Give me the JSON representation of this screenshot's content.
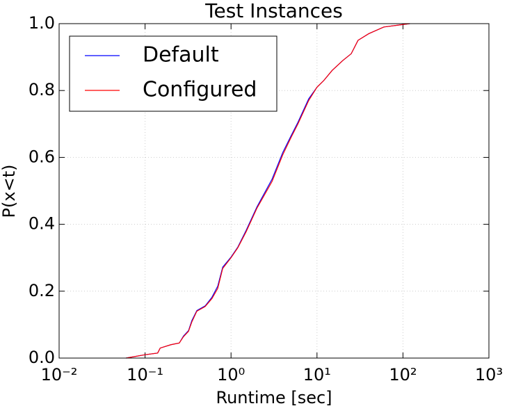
{
  "chart_data": {
    "type": "line",
    "title": "Test Instances",
    "xlabel": "Runtime [sec]",
    "ylabel": "P(x<t)",
    "x": [
      0.06,
      0.1,
      0.14,
      0.15,
      0.2,
      0.25,
      0.28,
      0.32,
      0.35,
      0.4,
      0.5,
      0.6,
      0.7,
      0.8,
      1.0,
      1.2,
      1.5,
      2.0,
      3.0,
      4.0,
      5.0,
      6.0,
      8.0,
      10,
      12,
      15,
      20,
      25,
      30,
      40,
      60,
      120
    ],
    "series": [
      {
        "name": "Default",
        "color": "#0000ff",
        "values": [
          0.0,
          0.01,
          0.015,
          0.03,
          0.04,
          0.045,
          0.066,
          0.082,
          0.112,
          0.142,
          0.156,
          0.182,
          0.215,
          0.272,
          0.302,
          0.332,
          0.382,
          0.452,
          0.535,
          0.615,
          0.665,
          0.705,
          0.775,
          0.81,
          0.83,
          0.86,
          0.89,
          0.91,
          0.95,
          0.97,
          0.99,
          1.0
        ]
      },
      {
        "name": "Configured",
        "color": "#ff0000",
        "values": [
          0.0,
          0.01,
          0.015,
          0.03,
          0.04,
          0.045,
          0.064,
          0.08,
          0.108,
          0.14,
          0.154,
          0.178,
          0.208,
          0.268,
          0.3,
          0.33,
          0.378,
          0.448,
          0.528,
          0.608,
          0.66,
          0.7,
          0.77,
          0.81,
          0.83,
          0.86,
          0.89,
          0.91,
          0.95,
          0.97,
          0.99,
          1.0
        ]
      }
    ],
    "xscale": "log",
    "xlim": [
      0.01,
      1000
    ],
    "xticks": [
      {
        "value": 0.01,
        "label": "10⁻²"
      },
      {
        "value": 0.1,
        "label": "10⁻¹"
      },
      {
        "value": 1,
        "label": "10⁰"
      },
      {
        "value": 10,
        "label": "10¹"
      },
      {
        "value": 100,
        "label": "10²"
      },
      {
        "value": 1000,
        "label": "10³"
      }
    ],
    "ylim": [
      0,
      1
    ],
    "yticks": [
      {
        "value": 0,
        "label": "0.0"
      },
      {
        "value": 0.2,
        "label": "0.2"
      },
      {
        "value": 0.4,
        "label": "0.4"
      },
      {
        "value": 0.6,
        "label": "0.6"
      },
      {
        "value": 0.8,
        "label": "0.8"
      },
      {
        "value": 1,
        "label": "1.0"
      }
    ],
    "grid": true,
    "legend": "upper left"
  }
}
